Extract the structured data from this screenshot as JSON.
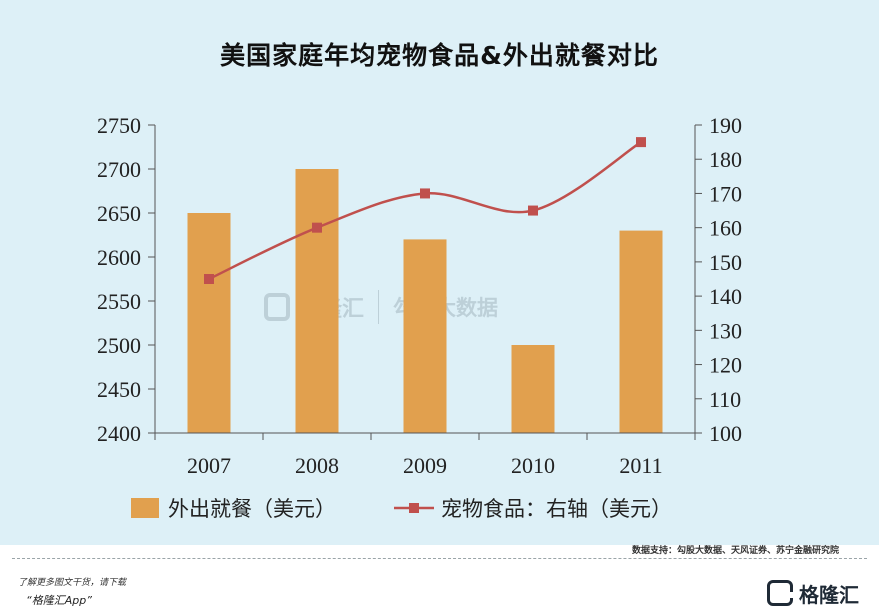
{
  "chart_data": {
    "type": "bar",
    "title": "美国家庭年均宠物食品&外出就餐对比",
    "categories": [
      "2007",
      "2008",
      "2009",
      "2010",
      "2011"
    ],
    "series": [
      {
        "name": "外出就餐（美元）",
        "type": "bar",
        "axis": "left",
        "color": "#e1a04e",
        "values": [
          2650,
          2700,
          2620,
          2500,
          2630
        ]
      },
      {
        "name": "宠物食品：右轴（美元）",
        "type": "line",
        "axis": "right",
        "color": "#c0504d",
        "marker": "square",
        "values": [
          145,
          160,
          170,
          165,
          185
        ]
      }
    ],
    "ylim_left": [
      2400,
      2750
    ],
    "yticks_left": [
      "2400",
      "2450",
      "2500",
      "2550",
      "2600",
      "2650",
      "2700",
      "2750"
    ],
    "ylim_right": [
      100,
      190
    ],
    "yticks_right": [
      "100",
      "110",
      "120",
      "130",
      "140",
      "150",
      "160",
      "170",
      "180",
      "190"
    ],
    "legend_position": "bottom",
    "grid": false
  },
  "source_note": "数据支持：勾股大数据、天风证券、苏宁金融研究院",
  "footer": {
    "line1": "了解更多图文干货，请下载",
    "line2": "“格隆汇App”",
    "logo_text": "格隆汇"
  },
  "watermark": {
    "brand": "格隆汇",
    "product": "勾股大数据"
  }
}
